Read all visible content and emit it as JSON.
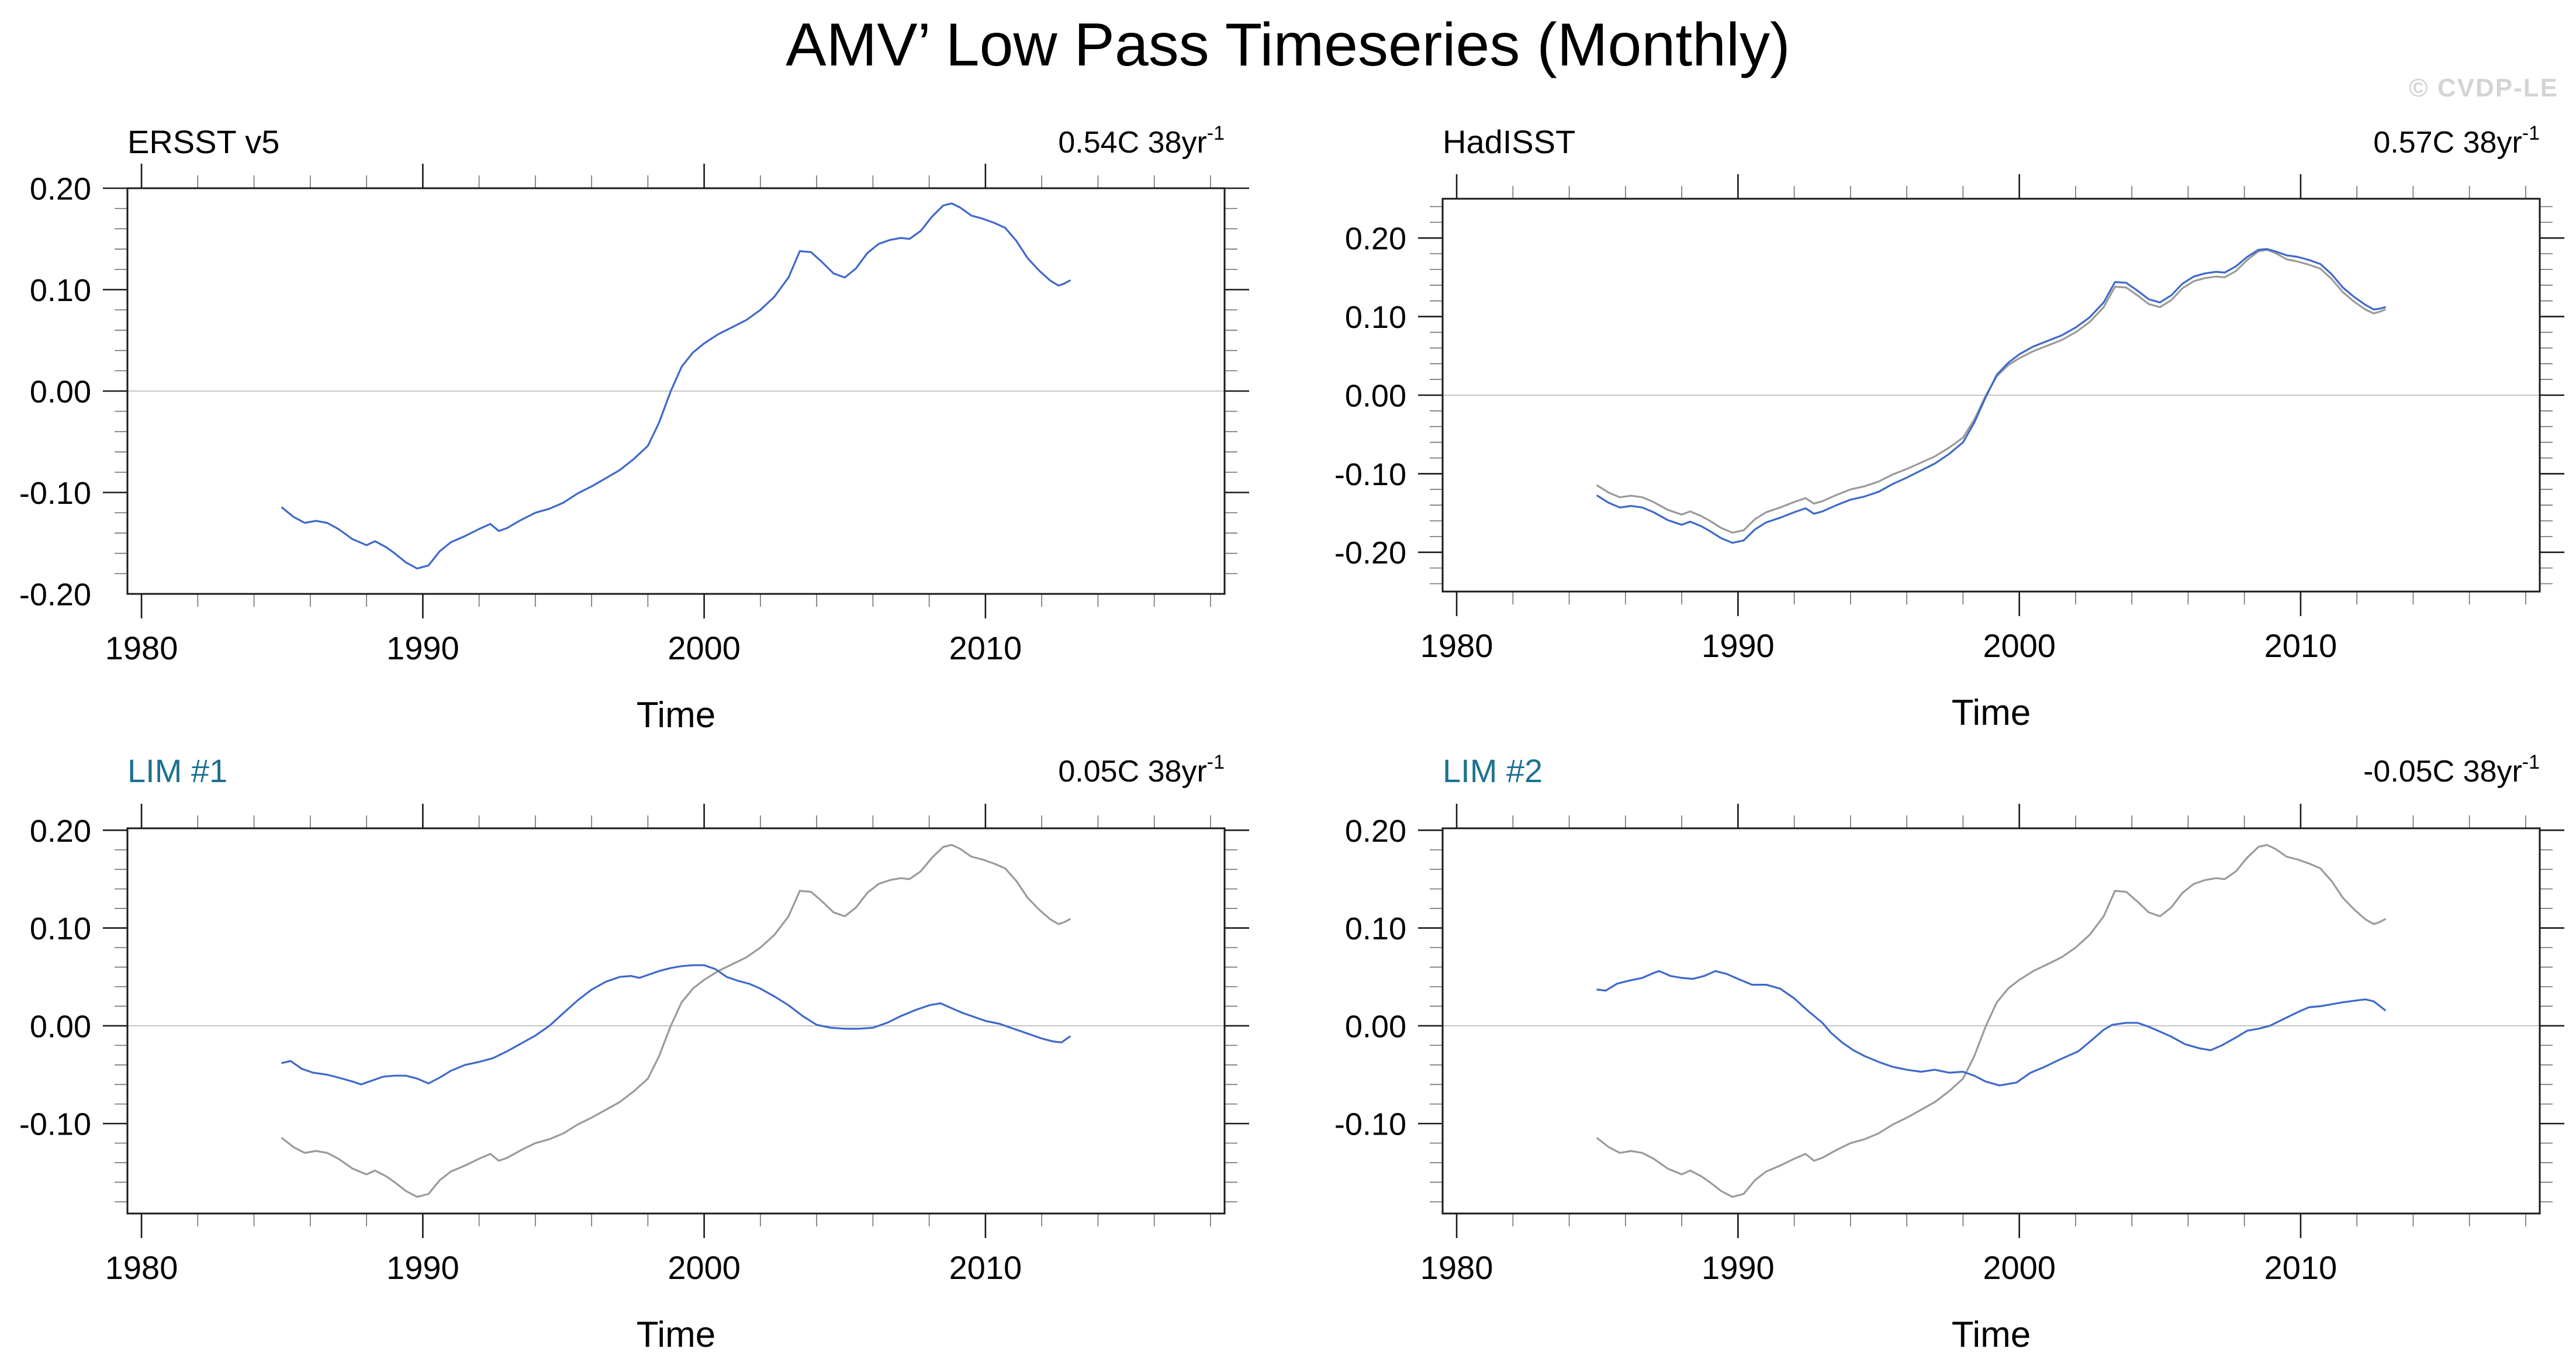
{
  "page": {
    "title": "AMV’ Low Pass Timeseries (Monthly)",
    "watermark": "© CVDP-LE",
    "colors": {
      "obs_line": "#3e68cb",
      "ref_line": "#9a9a9a",
      "lim_title": "#1d7191",
      "obs_title": "#000000",
      "watermark": "#d4d4d4",
      "zero_line": "#b3b3b3",
      "frame": "#1a1a1a",
      "minor_tick": "#777777"
    }
  },
  "chart_data": {
    "type": "line",
    "title": "AMV’ Low Pass Timeseries (Monthly)",
    "x_axis": {
      "label": "Time",
      "lim": [
        1979.5,
        2018.5
      ],
      "major_ticks": [
        1980,
        1990,
        2000,
        2010
      ],
      "tick_labels": [
        "1980",
        "1990",
        "2000",
        "2010"
      ],
      "minor_step": 2
    },
    "grid": "zero-line-only",
    "legend": "none",
    "series_data": {
      "ersst_v5": [
        [
          1985.0,
          -0.115
        ],
        [
          1985.4,
          -0.124
        ],
        [
          1985.8,
          -0.13
        ],
        [
          1986.2,
          -0.128
        ],
        [
          1986.6,
          -0.13
        ],
        [
          1987.0,
          -0.136
        ],
        [
          1987.5,
          -0.146
        ],
        [
          1988.0,
          -0.152
        ],
        [
          1988.3,
          -0.148
        ],
        [
          1988.7,
          -0.154
        ],
        [
          1989.0,
          -0.16
        ],
        [
          1989.4,
          -0.169
        ],
        [
          1989.8,
          -0.175
        ],
        [
          1990.2,
          -0.172
        ],
        [
          1990.6,
          -0.158
        ],
        [
          1991.0,
          -0.149
        ],
        [
          1991.5,
          -0.143
        ],
        [
          1992.0,
          -0.136
        ],
        [
          1992.4,
          -0.131
        ],
        [
          1992.7,
          -0.138
        ],
        [
          1993.0,
          -0.135
        ],
        [
          1993.5,
          -0.127
        ],
        [
          1994.0,
          -0.12
        ],
        [
          1994.5,
          -0.116
        ],
        [
          1995.0,
          -0.11
        ],
        [
          1995.5,
          -0.101
        ],
        [
          1996.0,
          -0.094
        ],
        [
          1996.5,
          -0.086
        ],
        [
          1997.0,
          -0.078
        ],
        [
          1997.5,
          -0.067
        ],
        [
          1998.0,
          -0.054
        ],
        [
          1998.4,
          -0.031
        ],
        [
          1998.8,
          -0.001
        ],
        [
          1999.2,
          0.024
        ],
        [
          1999.6,
          0.038
        ],
        [
          2000.0,
          0.047
        ],
        [
          2000.5,
          0.056
        ],
        [
          2001.0,
          0.063
        ],
        [
          2001.5,
          0.07
        ],
        [
          2002.0,
          0.08
        ],
        [
          2002.5,
          0.093
        ],
        [
          2003.0,
          0.112
        ],
        [
          2003.4,
          0.138
        ],
        [
          2003.8,
          0.137
        ],
        [
          2004.2,
          0.127
        ],
        [
          2004.6,
          0.116
        ],
        [
          2005.0,
          0.112
        ],
        [
          2005.4,
          0.121
        ],
        [
          2005.8,
          0.136
        ],
        [
          2006.2,
          0.145
        ],
        [
          2006.6,
          0.149
        ],
        [
          2007.0,
          0.151
        ],
        [
          2007.3,
          0.15
        ],
        [
          2007.7,
          0.158
        ],
        [
          2008.1,
          0.172
        ],
        [
          2008.5,
          0.183
        ],
        [
          2008.8,
          0.185
        ],
        [
          2009.1,
          0.181
        ],
        [
          2009.5,
          0.173
        ],
        [
          2009.9,
          0.17
        ],
        [
          2010.3,
          0.166
        ],
        [
          2010.7,
          0.161
        ],
        [
          2011.1,
          0.148
        ],
        [
          2011.5,
          0.131
        ],
        [
          2011.9,
          0.119
        ],
        [
          2012.3,
          0.109
        ],
        [
          2012.6,
          0.104
        ],
        [
          2012.8,
          0.106
        ],
        [
          2013.0,
          0.109
        ]
      ],
      "hadisst": [
        [
          1985.0,
          -0.128
        ],
        [
          1985.4,
          -0.137
        ],
        [
          1985.8,
          -0.143
        ],
        [
          1986.2,
          -0.141
        ],
        [
          1986.6,
          -0.143
        ],
        [
          1987.0,
          -0.149
        ],
        [
          1987.5,
          -0.159
        ],
        [
          1988.0,
          -0.165
        ],
        [
          1988.3,
          -0.161
        ],
        [
          1988.7,
          -0.167
        ],
        [
          1989.0,
          -0.173
        ],
        [
          1989.4,
          -0.182
        ],
        [
          1989.8,
          -0.188
        ],
        [
          1990.2,
          -0.185
        ],
        [
          1990.6,
          -0.171
        ],
        [
          1991.0,
          -0.162
        ],
        [
          1991.5,
          -0.156
        ],
        [
          1992.0,
          -0.149
        ],
        [
          1992.4,
          -0.144
        ],
        [
          1992.7,
          -0.151
        ],
        [
          1993.0,
          -0.148
        ],
        [
          1993.5,
          -0.14
        ],
        [
          1994.0,
          -0.133
        ],
        [
          1994.5,
          -0.129
        ],
        [
          1995.0,
          -0.123
        ],
        [
          1995.5,
          -0.113
        ],
        [
          1996.0,
          -0.105
        ],
        [
          1996.5,
          -0.096
        ],
        [
          1997.0,
          -0.087
        ],
        [
          1997.5,
          -0.075
        ],
        [
          1998.0,
          -0.06
        ],
        [
          1998.4,
          -0.035
        ],
        [
          1998.8,
          -0.003
        ],
        [
          1999.2,
          0.026
        ],
        [
          1999.6,
          0.041
        ],
        [
          2000.0,
          0.052
        ],
        [
          2000.5,
          0.062
        ],
        [
          2001.0,
          0.069
        ],
        [
          2001.5,
          0.076
        ],
        [
          2002.0,
          0.086
        ],
        [
          2002.5,
          0.099
        ],
        [
          2003.0,
          0.118
        ],
        [
          2003.4,
          0.144
        ],
        [
          2003.8,
          0.143
        ],
        [
          2004.2,
          0.133
        ],
        [
          2004.6,
          0.122
        ],
        [
          2005.0,
          0.118
        ],
        [
          2005.4,
          0.127
        ],
        [
          2005.8,
          0.142
        ],
        [
          2006.2,
          0.151
        ],
        [
          2006.6,
          0.155
        ],
        [
          2007.0,
          0.157
        ],
        [
          2007.3,
          0.156
        ],
        [
          2007.7,
          0.164
        ],
        [
          2008.1,
          0.176
        ],
        [
          2008.5,
          0.185
        ],
        [
          2008.8,
          0.186
        ],
        [
          2009.1,
          0.183
        ],
        [
          2009.5,
          0.178
        ],
        [
          2009.9,
          0.176
        ],
        [
          2010.3,
          0.172
        ],
        [
          2010.7,
          0.167
        ],
        [
          2011.1,
          0.154
        ],
        [
          2011.5,
          0.137
        ],
        [
          2011.9,
          0.125
        ],
        [
          2012.3,
          0.115
        ],
        [
          2012.6,
          0.109
        ],
        [
          2012.8,
          0.11
        ],
        [
          2013.0,
          0.112
        ]
      ],
      "lim1": [
        [
          1985.0,
          -0.038
        ],
        [
          1985.3,
          -0.036
        ],
        [
          1985.7,
          -0.044
        ],
        [
          1986.1,
          -0.048
        ],
        [
          1986.6,
          -0.05
        ],
        [
          1987.0,
          -0.053
        ],
        [
          1987.5,
          -0.057
        ],
        [
          1987.8,
          -0.06
        ],
        [
          1988.2,
          -0.056
        ],
        [
          1988.6,
          -0.052
        ],
        [
          1989.0,
          -0.051
        ],
        [
          1989.4,
          -0.051
        ],
        [
          1989.8,
          -0.054
        ],
        [
          1990.2,
          -0.059
        ],
        [
          1990.6,
          -0.053
        ],
        [
          1991.0,
          -0.046
        ],
        [
          1991.5,
          -0.04
        ],
        [
          1992.0,
          -0.037
        ],
        [
          1992.5,
          -0.033
        ],
        [
          1993.0,
          -0.026
        ],
        [
          1993.5,
          -0.018
        ],
        [
          1994.0,
          -0.01
        ],
        [
          1994.5,
          0.0
        ],
        [
          1995.0,
          0.013
        ],
        [
          1995.5,
          0.026
        ],
        [
          1996.0,
          0.037
        ],
        [
          1996.5,
          0.045
        ],
        [
          1997.0,
          0.05
        ],
        [
          1997.4,
          0.051
        ],
        [
          1997.7,
          0.049
        ],
        [
          1998.0,
          0.052
        ],
        [
          1998.4,
          0.056
        ],
        [
          1998.8,
          0.059
        ],
        [
          1999.2,
          0.061
        ],
        [
          1999.6,
          0.062
        ],
        [
          2000.0,
          0.062
        ],
        [
          2000.4,
          0.058
        ],
        [
          2000.8,
          0.05
        ],
        [
          2001.2,
          0.046
        ],
        [
          2001.6,
          0.043
        ],
        [
          2002.0,
          0.038
        ],
        [
          2002.5,
          0.03
        ],
        [
          2003.0,
          0.021
        ],
        [
          2003.5,
          0.01
        ],
        [
          2004.0,
          0.001
        ],
        [
          2004.5,
          -0.002
        ],
        [
          2005.0,
          -0.003
        ],
        [
          2005.5,
          -0.003
        ],
        [
          2006.0,
          -0.002
        ],
        [
          2006.5,
          0.003
        ],
        [
          2007.0,
          0.01
        ],
        [
          2007.5,
          0.016
        ],
        [
          2008.0,
          0.021
        ],
        [
          2008.4,
          0.023
        ],
        [
          2008.8,
          0.018
        ],
        [
          2009.2,
          0.013
        ],
        [
          2009.6,
          0.009
        ],
        [
          2010.0,
          0.005
        ],
        [
          2010.5,
          0.002
        ],
        [
          2011.0,
          -0.003
        ],
        [
          2011.5,
          -0.008
        ],
        [
          2012.0,
          -0.013
        ],
        [
          2012.4,
          -0.016
        ],
        [
          2012.7,
          -0.017
        ],
        [
          2013.0,
          -0.011
        ]
      ],
      "lim2": [
        [
          1985.0,
          0.037
        ],
        [
          1985.3,
          0.036
        ],
        [
          1985.7,
          0.043
        ],
        [
          1986.1,
          0.046
        ],
        [
          1986.6,
          0.049
        ],
        [
          1987.0,
          0.054
        ],
        [
          1987.2,
          0.056
        ],
        [
          1987.6,
          0.051
        ],
        [
          1988.0,
          0.049
        ],
        [
          1988.4,
          0.048
        ],
        [
          1988.8,
          0.051
        ],
        [
          1989.2,
          0.056
        ],
        [
          1989.6,
          0.053
        ],
        [
          1990.0,
          0.048
        ],
        [
          1990.5,
          0.042
        ],
        [
          1991.0,
          0.042
        ],
        [
          1991.5,
          0.038
        ],
        [
          1992.0,
          0.028
        ],
        [
          1992.5,
          0.015
        ],
        [
          1993.0,
          0.003
        ],
        [
          1993.3,
          -0.007
        ],
        [
          1993.7,
          -0.017
        ],
        [
          1994.1,
          -0.025
        ],
        [
          1994.5,
          -0.031
        ],
        [
          1995.0,
          -0.037
        ],
        [
          1995.5,
          -0.042
        ],
        [
          1996.0,
          -0.045
        ],
        [
          1996.5,
          -0.047
        ],
        [
          1997.0,
          -0.045
        ],
        [
          1997.5,
          -0.048
        ],
        [
          1998.0,
          -0.047
        ],
        [
          1998.4,
          -0.051
        ],
        [
          1998.8,
          -0.057
        ],
        [
          1999.3,
          -0.061
        ],
        [
          1999.9,
          -0.058
        ],
        [
          2000.4,
          -0.048
        ],
        [
          2000.9,
          -0.042
        ],
        [
          2001.4,
          -0.035
        ],
        [
          2002.1,
          -0.026
        ],
        [
          2002.6,
          -0.014
        ],
        [
          2003.0,
          -0.004
        ],
        [
          2003.3,
          0.001
        ],
        [
          2003.8,
          0.003
        ],
        [
          2004.2,
          0.003
        ],
        [
          2004.6,
          -0.001
        ],
        [
          2005.0,
          -0.006
        ],
        [
          2005.4,
          -0.011
        ],
        [
          2005.9,
          -0.019
        ],
        [
          2006.4,
          -0.023
        ],
        [
          2006.8,
          -0.025
        ],
        [
          2007.2,
          -0.02
        ],
        [
          2007.7,
          -0.012
        ],
        [
          2008.1,
          -0.005
        ],
        [
          2008.5,
          -0.003
        ],
        [
          2008.9,
          0.0
        ],
        [
          2009.4,
          0.007
        ],
        [
          2009.9,
          0.014
        ],
        [
          2010.3,
          0.019
        ],
        [
          2010.7,
          0.02
        ],
        [
          2011.1,
          0.022
        ],
        [
          2011.5,
          0.024
        ],
        [
          2012.0,
          0.026
        ],
        [
          2012.3,
          0.027
        ],
        [
          2012.6,
          0.025
        ],
        [
          2013.0,
          0.016
        ]
      ]
    },
    "panels": [
      {
        "title": "ERSST v5",
        "title_color": "#000000",
        "trend_main": "0.54C 38yr",
        "trend_sup": "-1",
        "xlabel": "Time",
        "ylim": [
          -0.2,
          0.2
        ],
        "ytick_values": [
          0.2,
          0.1,
          0.0,
          -0.1,
          -0.2
        ],
        "ytick_labels": [
          "0.20",
          "0.10",
          "0.00",
          "-0.10",
          "-0.20"
        ],
        "ytick_minor_step": 0.02,
        "lines": [
          {
            "series": "ersst_v5",
            "name": "ERSST v5",
            "color": "#3e68cb"
          }
        ]
      },
      {
        "title": "HadISST",
        "title_color": "#000000",
        "trend_main": "0.57C 38yr",
        "trend_sup": "-1",
        "xlabel": "Time",
        "ylim": [
          -0.25,
          0.25
        ],
        "ytick_values": [
          0.2,
          0.1,
          0.0,
          -0.1,
          -0.2
        ],
        "ytick_labels": [
          "0.20",
          "0.10",
          "0.00",
          "-0.10",
          "-0.20"
        ],
        "ytick_minor_step": 0.02,
        "lines": [
          {
            "series": "ersst_v5",
            "name": "ERSST v5 reference",
            "color": "#9a9a9a"
          },
          {
            "series": "hadisst",
            "name": "HadISST",
            "color": "#3e68cb"
          }
        ]
      },
      {
        "title": "LIM #1",
        "title_color": "#1d7191",
        "trend_main": "0.05C 38yr",
        "trend_sup": "-1",
        "xlabel": "Time",
        "ylim": [
          -0.192,
          0.202
        ],
        "ytick_values": [
          0.2,
          0.1,
          0.0,
          -0.1
        ],
        "ytick_labels": [
          "0.20",
          "0.10",
          "0.00",
          "-0.10"
        ],
        "ytick_minor_step": 0.02,
        "lines": [
          {
            "series": "ersst_v5",
            "name": "ERSST v5 reference",
            "color": "#9a9a9a"
          },
          {
            "series": "lim1",
            "name": "LIM #1",
            "color": "#3e68cb"
          }
        ]
      },
      {
        "title": "LIM #2",
        "title_color": "#1d7191",
        "trend_main": "-0.05C 38yr",
        "trend_sup": "-1",
        "xlabel": "Time",
        "ylim": [
          -0.192,
          0.202
        ],
        "ytick_values": [
          0.2,
          0.1,
          0.0,
          -0.1
        ],
        "ytick_labels": [
          "0.20",
          "0.10",
          "0.00",
          "-0.10"
        ],
        "ytick_minor_step": 0.02,
        "lines": [
          {
            "series": "ersst_v5",
            "name": "ERSST v5 reference",
            "color": "#9a9a9a"
          },
          {
            "series": "lim2",
            "name": "LIM #2",
            "color": "#3e68cb"
          }
        ]
      }
    ]
  }
}
